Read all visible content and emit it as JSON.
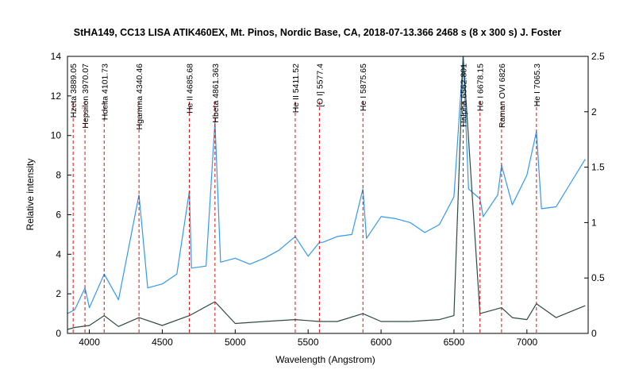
{
  "chart_data": {
    "type": "line",
    "title": "StHA149, CC13 LISA ATIK460EX, Mt. Pinos, Nordic Base, CA,  2018-07-13.366  2468 s (8 x 300 s)  J. Foster",
    "xlabel": "Wavelength (Angstrom)",
    "ylabel": "Relative intensity",
    "xlim": [
      3850,
      7420
    ],
    "ylim": [
      0,
      14
    ],
    "y2lim": [
      0,
      2.5
    ],
    "x_ticks": [
      4000,
      4500,
      5000,
      5500,
      6000,
      6500,
      7000
    ],
    "y_ticks": [
      0,
      2,
      4,
      6,
      8,
      10,
      12,
      14
    ],
    "y2_ticks": [
      0,
      0.5,
      1,
      1.5,
      2,
      2.5
    ],
    "grid": false,
    "colors": {
      "scaled_spectrum": "#3399ee",
      "raw_spectrum": "#2f4a42",
      "line_markers": "#dd1111",
      "axes": "#000000"
    },
    "series": [
      {
        "axis": "left",
        "color": "#2f4a42",
        "x": [
          3850,
          3900,
          4000,
          4101.73,
          4200,
          4340.46,
          4500,
          4685.68,
          4861.363,
          5000,
          5200,
          5411.52,
          5577.4,
          5700,
          5875.65,
          6000,
          6200,
          6400,
          6500,
          6562.801,
          6678.15,
          6826,
          6900,
          7000,
          7065.3,
          7200,
          7300,
          7400
        ],
        "values": [
          0.2,
          0.3,
          0.4,
          0.9,
          0.35,
          0.8,
          0.4,
          0.9,
          1.6,
          0.5,
          0.6,
          0.7,
          0.6,
          0.6,
          1.0,
          0.6,
          0.6,
          0.7,
          0.9,
          14,
          1.0,
          1.3,
          0.8,
          0.7,
          1.5,
          0.8,
          1.1,
          1.4
        ]
      },
      {
        "axis": "left",
        "color": "#3399ee",
        "x": [
          3850,
          3900,
          3970.07,
          4000,
          4101.73,
          4200,
          4340.46,
          4400,
          4500,
          4600,
          4685.68,
          4700,
          4800,
          4861.363,
          4900,
          5000,
          5100,
          5200,
          5300,
          5411.52,
          5500,
          5577.4,
          5600,
          5700,
          5800,
          5875.65,
          5900,
          6000,
          6100,
          6200,
          6300,
          6400,
          6500,
          6562.801,
          6600,
          6678.15,
          6700,
          6800,
          6826,
          6900,
          7000,
          7065.3,
          7100,
          7200,
          7300,
          7400
        ],
        "values": [
          1.0,
          1.2,
          2.3,
          1.3,
          3.0,
          1.7,
          7.0,
          2.3,
          2.5,
          3.0,
          7.2,
          3.3,
          3.4,
          10.7,
          3.6,
          3.8,
          3.5,
          3.8,
          4.2,
          4.9,
          3.9,
          4.6,
          4.6,
          4.9,
          5.0,
          7.3,
          4.8,
          5.9,
          5.8,
          5.6,
          5.1,
          5.5,
          6.9,
          14,
          7.3,
          6.8,
          5.9,
          7.0,
          8.5,
          6.5,
          8.0,
          10.2,
          6.3,
          6.4,
          7.6,
          8.8
        ]
      }
    ],
    "annotations": [
      {
        "label": "Hzeta 3889.05",
        "x": 3889.05
      },
      {
        "label": "Hepsilon 3970.07",
        "x": 3970.07
      },
      {
        "label": "Hdelta 4101.73",
        "x": 4101.73
      },
      {
        "label": "Hgamma 4340.46",
        "x": 4340.46
      },
      {
        "label": "He II 4685.68",
        "x": 4685.68
      },
      {
        "label": "Hbeta 4861.363",
        "x": 4861.363
      },
      {
        "label": "He II 5411.52",
        "x": 5411.52
      },
      {
        "label": "[O I] 5577.4",
        "x": 5577.4
      },
      {
        "label": "He I 5875.65",
        "x": 5875.65
      },
      {
        "label": "Halpha 6562.801",
        "x": 6562.801
      },
      {
        "label": "He I 6678.15",
        "x": 6678.15
      },
      {
        "label": "Raman OVI 6826",
        "x": 6826
      },
      {
        "label": "He I 7065.3",
        "x": 7065.3
      }
    ]
  }
}
